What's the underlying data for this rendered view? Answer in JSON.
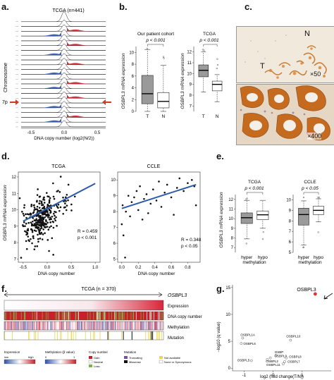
{
  "panels": {
    "a": {
      "label": "a.",
      "title": "TCGA (n=441)",
      "ylabel": "Chromosome",
      "xlabel": "DNA copy number (log2(N/2))",
      "xticks": [
        "-0.5",
        "0.0",
        "0.5"
      ],
      "marker": "7p"
    },
    "b": {
      "label": "b.",
      "left_title": "Our patient cohort",
      "left_p": "p < 0.001",
      "left_ylabel": "OSBPL3 mRNA expression",
      "left_yticks": [
        "10",
        "8",
        "6",
        "4",
        "2",
        "0"
      ],
      "right_title": "TCGA",
      "right_p": "p < 0.001",
      "right_ylabel": "OSBPL3 mRNA expression",
      "right_yticks": [
        "12",
        "11",
        "10",
        "9",
        "8",
        "7"
      ],
      "categories": [
        "T",
        "N"
      ]
    },
    "c": {
      "label": "c.",
      "top_letter_n": "N",
      "top_letter_t": "T",
      "top_mag": "×50",
      "bottom_mag": "×400"
    },
    "d": {
      "label": "d.",
      "left_title": "TCGA",
      "right_title": "CCLE",
      "ylabel": "OSBPL3 mRNA expression",
      "xlabel": "DNA copy number",
      "left_r": "R = 0.459",
      "left_p": "p < 0.001",
      "right_r": "R = 0.348",
      "right_p": "p < 0.05",
      "left_xticks": [
        "-0.5",
        "0.0",
        "0.5",
        "1.0"
      ],
      "left_yticks": [
        "12",
        "11",
        "10",
        "9",
        "8",
        "7"
      ],
      "right_xticks": [
        "0.0",
        "0.2",
        "0.4",
        "0.6",
        "0.8"
      ],
      "right_yticks": [
        "10",
        "9",
        "8",
        "7",
        "6",
        "5"
      ]
    },
    "e": {
      "label": "e.",
      "left_title": "TCGA",
      "left_p": "p < 0.001",
      "right_title": "CCLE",
      "right_p": "p < 0.05",
      "ylabel": "OSBPL3 mRNA expression",
      "categories": [
        "hyper",
        "hypo"
      ],
      "xlabel": "methylation",
      "left_yticks": [
        "12",
        "11",
        "10",
        "9",
        "8",
        "7"
      ],
      "right_yticks": [
        "10",
        "9",
        "8",
        "7",
        "6",
        "5"
      ]
    },
    "f": {
      "label": "f.",
      "title": "TCGA (n = 370)",
      "gene": "OSBPL3",
      "rows": [
        "Expression",
        "DNA copy number",
        "Methylation",
        "Mutation"
      ],
      "legend": {
        "expression_title": "Expression",
        "low": "low",
        "high": "high",
        "methylation_title": "Methylation (β value)",
        "meth_low": "0",
        "meth_high": "1",
        "copy_title": "Copy number",
        "gain": "Gain",
        "neutral": "Neutral",
        "loss": "Loss",
        "mutation_title": "Mutation",
        "truncating": "Truncating",
        "missense": "Missense",
        "not_available": "Not available",
        "none_syn": "None or Synonymous"
      }
    },
    "g": {
      "label": "g.",
      "ylabel": "−log10 (q value)",
      "xlabel": "log2 (fold change(T/N))",
      "yticks": [
        "15",
        "10",
        "5",
        "0"
      ],
      "xticks": [
        "-1",
        "0",
        "1"
      ],
      "genes": [
        "OSBPL3",
        "OSBPL1A",
        "OSBPL6",
        "OSBPL10",
        "OSBP",
        "OSBPL5",
        "OSBPL9",
        "OSBPL2",
        "OSBPL8",
        "OSBPL7",
        "OSBPL11"
      ]
    }
  },
  "colors": {
    "gain": "#c8202a",
    "loss": "#2b52a8",
    "neutral": "#ffffff",
    "fit_line": "#2a5aa8",
    "boxT": "#9a9a9a",
    "missense": "#111111",
    "truncating": "#7a4fa0",
    "not_available": "#e8d84a",
    "highlight": "#e23030"
  },
  "chart_data": [
    {
      "panel": "b-left",
      "type": "box",
      "categories": [
        "T",
        "N"
      ],
      "series": [
        {
          "values": [
            {
              "q1": 1.3,
              "median": 3.0,
              "q3": 6.1,
              "lo": 0.0,
              "hi": 10.5
            },
            {
              "q1": 0.6,
              "median": 1.7,
              "q3": 3.2,
              "lo": 0.0,
              "hi": 7.8
            }
          ]
        }
      ],
      "ylim": [
        0,
        11
      ]
    },
    {
      "panel": "b-right",
      "type": "box",
      "categories": [
        "T",
        "N"
      ],
      "series": [
        {
          "values": [
            {
              "q1": 9.7,
              "median": 10.3,
              "q3": 10.8,
              "lo": 8.3,
              "hi": 12.0
            },
            {
              "q1": 8.4,
              "median": 9.0,
              "q3": 9.3,
              "lo": 7.4,
              "hi": 9.9
            }
          ]
        }
      ],
      "ylim": [
        6.5,
        12.5
      ]
    },
    {
      "panel": "e-left",
      "type": "box",
      "categories": [
        "hyper",
        "hypo"
      ],
      "series": [
        {
          "values": [
            {
              "q1": 9.5,
              "median": 10.1,
              "q3": 10.6,
              "lo": 7.9,
              "hi": 11.9
            },
            {
              "q1": 9.9,
              "median": 10.4,
              "q3": 10.8,
              "lo": 9.0,
              "hi": 11.9
            }
          ]
        }
      ],
      "ylim": [
        6.5,
        12.5
      ]
    },
    {
      "panel": "e-right",
      "type": "box",
      "categories": [
        "hyper",
        "hypo"
      ],
      "series": [
        {
          "values": [
            {
              "q1": 7.6,
              "median": 8.6,
              "q3": 9.2,
              "lo": 5.7,
              "hi": 9.9
            },
            {
              "q1": 8.6,
              "median": 9.0,
              "q3": 9.4,
              "lo": 7.9,
              "hi": 10.1
            }
          ]
        }
      ],
      "ylim": [
        5,
        10.5
      ]
    },
    {
      "panel": "d-left",
      "type": "scatter",
      "xlabel": "DNA copy number",
      "ylabel": "OSBPL3 mRNA expression",
      "xlim": [
        -0.6,
        1.1
      ],
      "ylim": [
        6.8,
        12.3
      ],
      "fit": {
        "x": [
          -0.5,
          1.0
        ],
        "y": [
          9.3,
          11.6
        ]
      }
    },
    {
      "panel": "d-right",
      "type": "scatter",
      "xlabel": "DNA copy number",
      "ylabel": "OSBPL3 mRNA expression",
      "xlim": [
        -0.05,
        0.95
      ],
      "ylim": [
        4.8,
        10.5
      ],
      "fit": {
        "x": [
          0.0,
          0.9
        ],
        "y": [
          8.2,
          9.7
        ]
      },
      "points": [
        [
          0.0,
          7.2
        ],
        [
          0.01,
          8.4
        ],
        [
          0.02,
          6.5
        ],
        [
          0.04,
          5.1
        ],
        [
          0.05,
          8.0
        ],
        [
          0.08,
          9.0
        ],
        [
          0.1,
          7.7
        ],
        [
          0.12,
          8.6
        ],
        [
          0.15,
          8.9
        ],
        [
          0.18,
          9.3
        ],
        [
          0.2,
          8.1
        ],
        [
          0.22,
          9.6
        ],
        [
          0.25,
          7.5
        ],
        [
          0.27,
          8.8
        ],
        [
          0.3,
          9.1
        ],
        [
          0.32,
          7.9
        ],
        [
          0.35,
          8.5
        ],
        [
          0.38,
          9.4
        ],
        [
          0.42,
          8.7
        ],
        [
          0.45,
          9.9
        ],
        [
          0.48,
          8.3
        ],
        [
          0.52,
          9.2
        ],
        [
          0.55,
          9.7
        ],
        [
          0.6,
          8.9
        ],
        [
          0.63,
          7.8
        ],
        [
          0.67,
          9.5
        ],
        [
          0.7,
          10.1
        ],
        [
          0.75,
          9.3
        ],
        [
          0.8,
          9.8
        ],
        [
          0.85,
          10.0
        ],
        [
          0.88,
          9.6
        ],
        [
          0.9,
          8.4
        ]
      ]
    },
    {
      "panel": "g",
      "type": "scatter",
      "xlabel": "log2 (fold change(T/N))",
      "ylabel": "−log10 (q value)",
      "xlim": [
        -1.4,
        2.0
      ],
      "ylim": [
        -0.5,
        15.5
      ],
      "series": [
        {
          "values": [
            {
              "gene": "OSBPL3",
              "x": 1.45,
              "y": 13.8
            },
            {
              "gene": "OSBPL1A",
              "x": -1.05,
              "y": 5.6
            },
            {
              "gene": "OSBPL6",
              "x": -1.1,
              "y": 4.6
            },
            {
              "gene": "OSBPL10",
              "x": 0.6,
              "y": 5.2
            },
            {
              "gene": "OSBP",
              "x": 0.1,
              "y": 2.4
            },
            {
              "gene": "OSBPL5",
              "x": -0.75,
              "y": 1.4
            },
            {
              "gene": "OSBPL9",
              "x": -0.1,
              "y": 1.9
            },
            {
              "gene": "OSBPL2",
              "x": -0.2,
              "y": 1.6
            },
            {
              "gene": "OSBPL8",
              "x": 0.45,
              "y": 1.9
            },
            {
              "gene": "OSBPL7",
              "x": 0.4,
              "y": 1.2
            },
            {
              "gene": "OSBPL11",
              "x": 0.35,
              "y": 0.8
            }
          ]
        }
      ]
    }
  ]
}
